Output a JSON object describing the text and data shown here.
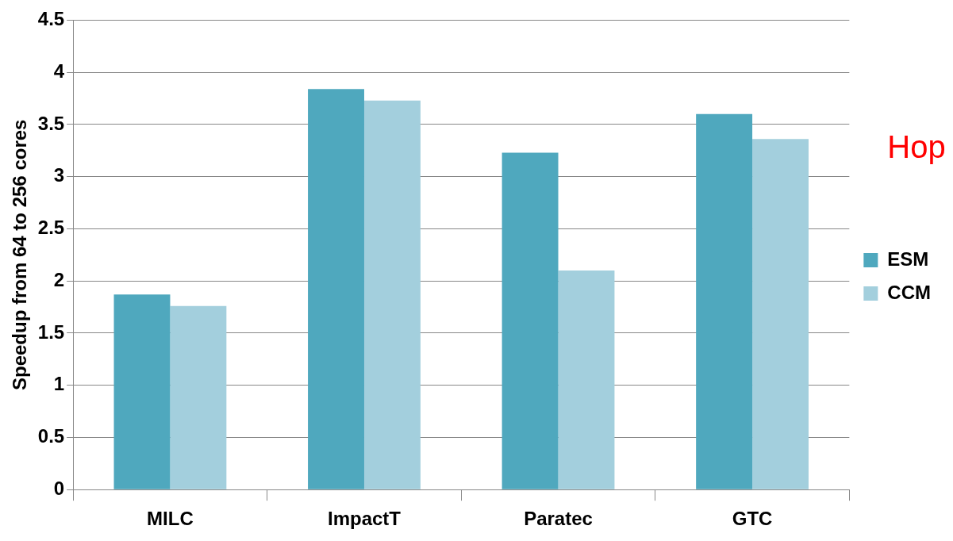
{
  "chart_data": {
    "type": "bar",
    "ylabel": "Speedup from 64 to 256 cores",
    "categories": [
      "MILC",
      "ImpactT",
      "Paratec",
      "GTC"
    ],
    "series": [
      {
        "name": "ESM",
        "color": "#4fa8be",
        "values": [
          1.87,
          3.84,
          3.23,
          3.6
        ]
      },
      {
        "name": "CCM",
        "color": "#a3cfdd",
        "values": [
          1.76,
          3.73,
          2.1,
          3.36
        ]
      }
    ],
    "ylim": [
      0,
      4.5
    ],
    "yticks": [
      0,
      0.5,
      1,
      1.5,
      2,
      2.5,
      3,
      3.5,
      4,
      4.5
    ],
    "grid": "y",
    "legend": "right",
    "annotations": [
      "Hop"
    ]
  }
}
